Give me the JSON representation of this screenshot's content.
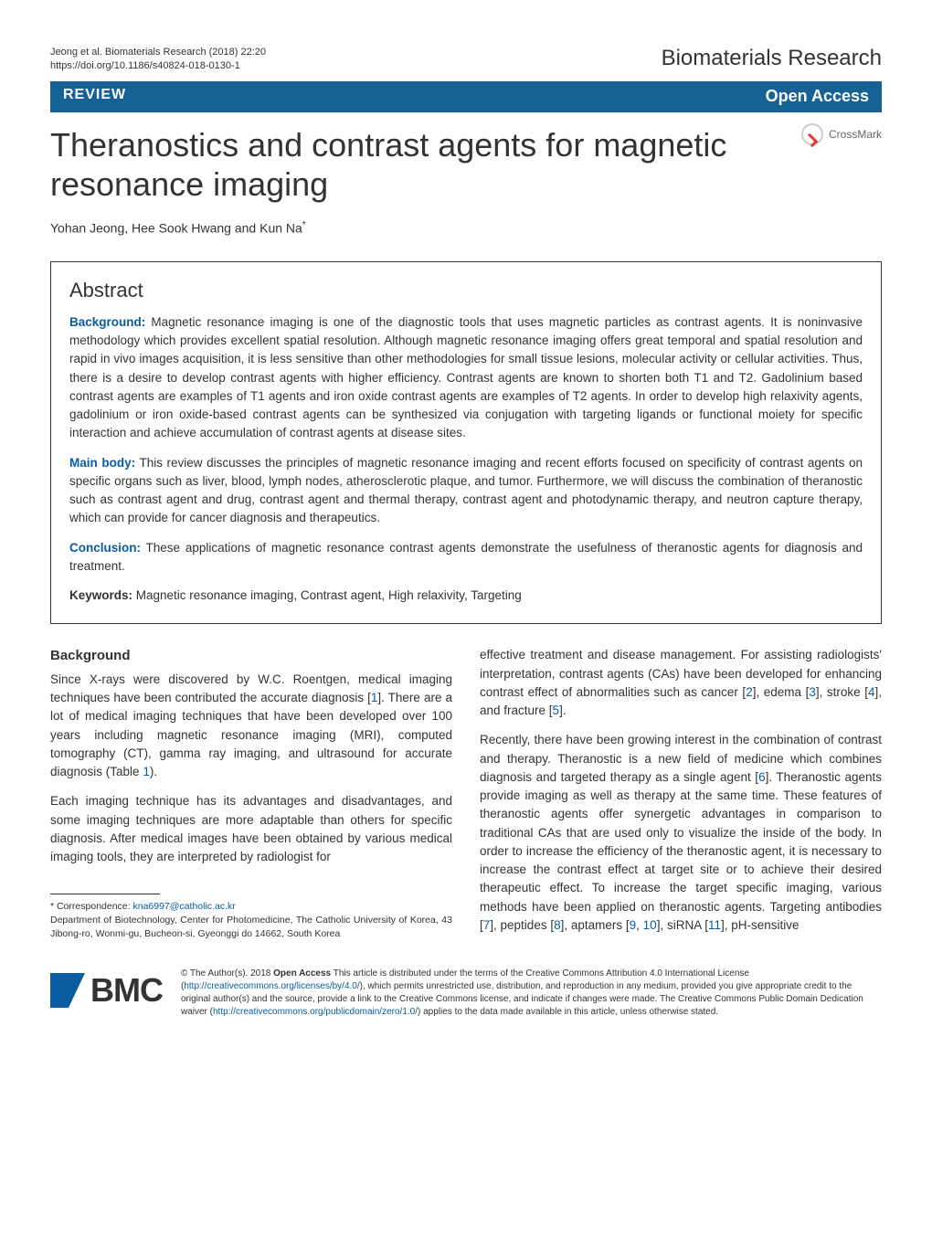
{
  "header": {
    "citation": "Jeong et al. Biomaterials Research  (2018) 22:20",
    "doi_line": "https://doi.org/10.1186/s40824-018-0130-1",
    "journal": "Biomaterials Research"
  },
  "banner": {
    "review_label": "REVIEW",
    "open_access_label": "Open Access"
  },
  "crossmark_label": "CrossMark",
  "title": "Theranostics and contrast agents for magnetic resonance imaging",
  "authors_line": "Yohan Jeong, Hee Sook Hwang and Kun Na",
  "abstract": {
    "heading": "Abstract",
    "background_label": "Background:",
    "background_text": " Magnetic resonance imaging is one of the diagnostic tools that uses magnetic particles as contrast agents. It is noninvasive methodology which provides excellent spatial resolution. Although magnetic resonance imaging offers great temporal and spatial resolution and rapid in vivo images acquisition, it is less sensitive than other methodologies for small tissue lesions, molecular activity or cellular activities. Thus, there is a desire to develop contrast agents with higher efficiency. Contrast agents are known to shorten both T1 and T2. Gadolinium based contrast agents are examples of T1 agents and iron oxide contrast agents are examples of T2 agents. In order to develop high relaxivity agents, gadolinium or iron oxide-based contrast agents can be synthesized via conjugation with targeting ligands or functional moiety for specific interaction and achieve accumulation of contrast agents at disease sites.",
    "main_label": "Main body:",
    "main_text": " This review discusses the principles of magnetic resonance imaging and recent efforts focused on specificity of contrast agents on specific organs such as liver, blood, lymph nodes, atherosclerotic plaque, and tumor. Furthermore, we will discuss the combination of theranostic such as contrast agent and drug, contrast agent and thermal therapy, contrast agent and photodynamic therapy, and neutron capture therapy, which can provide for cancer diagnosis and therapeutics.",
    "conclusion_label": "Conclusion:",
    "conclusion_text": " These applications of magnetic resonance contrast agents demonstrate the usefulness of theranostic agents for diagnosis and treatment.",
    "keywords_label": "Keywords:",
    "keywords_text": " Magnetic resonance imaging, Contrast agent, High relaxivity, Targeting"
  },
  "body": {
    "background_heading": "Background",
    "left_p1_a": "Since X-rays were discovered by W.C. Roentgen, medical imaging techniques have been contributed the accurate diagnosis [",
    "left_p1_ref1": "1",
    "left_p1_b": "]. There are a lot of medical imaging techniques that have been developed over 100 years including magnetic resonance imaging (MRI), computed tomography (CT), gamma ray imaging, and ultrasound for accurate diagnosis (Table ",
    "left_p1_ref2": "1",
    "left_p1_c": ").",
    "left_p2": "Each imaging technique has its advantages and disadvantages, and some imaging techniques are more adaptable than others for specific diagnosis. After medical images have been obtained by various medical imaging tools, they are interpreted by radiologist for",
    "right_p1_a": "effective treatment and disease management. For assisting radiologists' interpretation, contrast agents (CAs) have been developed for enhancing contrast effect of abnormalities such as cancer [",
    "right_p1_ref2": "2",
    "right_p1_b": "], edema [",
    "right_p1_ref3": "3",
    "right_p1_c": "], stroke [",
    "right_p1_ref4": "4",
    "right_p1_d": "], and fracture [",
    "right_p1_ref5": "5",
    "right_p1_e": "].",
    "right_p2_a": "Recently, there have been growing interest in the combination of contrast and therapy. Theranostic is a new field of medicine which combines diagnosis and targeted therapy as a single agent [",
    "right_p2_ref6": "6",
    "right_p2_b": "]. Theranostic agents provide imaging as well as therapy at the same time. These features of theranostic agents offer synergetic advantages in comparison to traditional CAs that are used only to visualize the inside of the body. In order to increase the efficiency of the theranostic agent, it is necessary to increase the contrast effect at target site or to achieve their desired therapeutic effect. To increase the target specific imaging, various methods have been applied on theranostic agents. Targeting antibodies [",
    "right_p2_ref7": "7",
    "right_p2_c": "], peptides [",
    "right_p2_ref8": "8",
    "right_p2_d": "], aptamers [",
    "right_p2_ref9": "9",
    "right_p2_e": ", ",
    "right_p2_ref10": "10",
    "right_p2_f": "], siRNA [",
    "right_p2_ref11": "11",
    "right_p2_g": "], pH-sensitive"
  },
  "correspondence": {
    "star_line": "* Correspondence: ",
    "email": "kna6997@catholic.ac.kr",
    "affiliation": "Department of Biotechnology, Center for Photomedicine, The Catholic University of Korea, 43 Jibong-ro, Wonmi-gu, Bucheon-si, Gyeonggi do 14662, South Korea"
  },
  "footer": {
    "bmc": "BMC",
    "license_a": "© The Author(s). 2018 ",
    "license_bold": "Open Access",
    "license_b": " This article is distributed under the terms of the Creative Commons Attribution 4.0 International License (",
    "license_url1": "http://creativecommons.org/licenses/by/4.0/",
    "license_c": "), which permits unrestricted use, distribution, and reproduction in any medium, provided you give appropriate credit to the original author(s) and the source, provide a link to the Creative Commons license, and indicate if changes were made. The Creative Commons Public Domain Dedication waiver (",
    "license_url2": "http://creativecommons.org/publicdomain/zero/1.0/",
    "license_d": ") applies to the data made available in this article, unless otherwise stated."
  },
  "colors": {
    "banner_bg": "#166296",
    "link": "#0a5ca0",
    "text": "#333333"
  }
}
